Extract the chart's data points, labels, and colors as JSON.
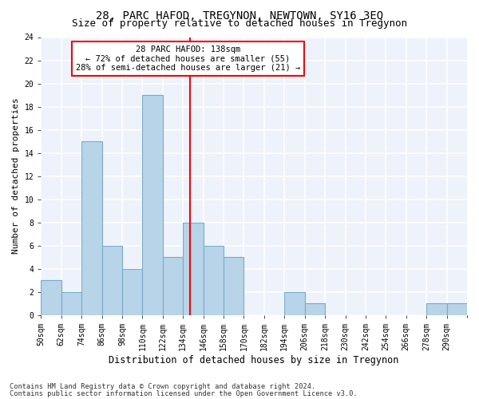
{
  "title": "28, PARC HAFOD, TREGYNON, NEWTOWN, SY16 3EQ",
  "subtitle": "Size of property relative to detached houses in Tregynon",
  "xlabel": "Distribution of detached houses by size in Tregynon",
  "ylabel": "Number of detached properties",
  "bin_edges": [
    50,
    62,
    74,
    86,
    98,
    110,
    122,
    134,
    146,
    158,
    170,
    182,
    194,
    206,
    218,
    230,
    242,
    254,
    266,
    278,
    290,
    302
  ],
  "counts": [
    3,
    2,
    15,
    6,
    4,
    19,
    5,
    8,
    6,
    5,
    0,
    0,
    2,
    1,
    0,
    0,
    0,
    0,
    0,
    1,
    1
  ],
  "bar_color": "#b8d4e8",
  "bar_edge_color": "#7aaac8",
  "vline_x": 138,
  "vline_color": "red",
  "annotation_text": "28 PARC HAFOD: 138sqm\n← 72% of detached houses are smaller (55)\n28% of semi-detached houses are larger (21) →",
  "annotation_box_color": "white",
  "annotation_box_edge_color": "red",
  "ylim": [
    0,
    24
  ],
  "yticks": [
    0,
    2,
    4,
    6,
    8,
    10,
    12,
    14,
    16,
    18,
    20,
    22,
    24
  ],
  "background_color": "#eef2fb",
  "grid_color": "white",
  "footer_line1": "Contains HM Land Registry data © Crown copyright and database right 2024.",
  "footer_line2": "Contains public sector information licensed under the Open Government Licence v3.0.",
  "title_fontsize": 10,
  "subtitle_fontsize": 9,
  "xlabel_fontsize": 8.5,
  "ylabel_fontsize": 8,
  "tick_fontsize": 7,
  "annotation_fontsize": 7.5,
  "footer_fontsize": 6.2
}
